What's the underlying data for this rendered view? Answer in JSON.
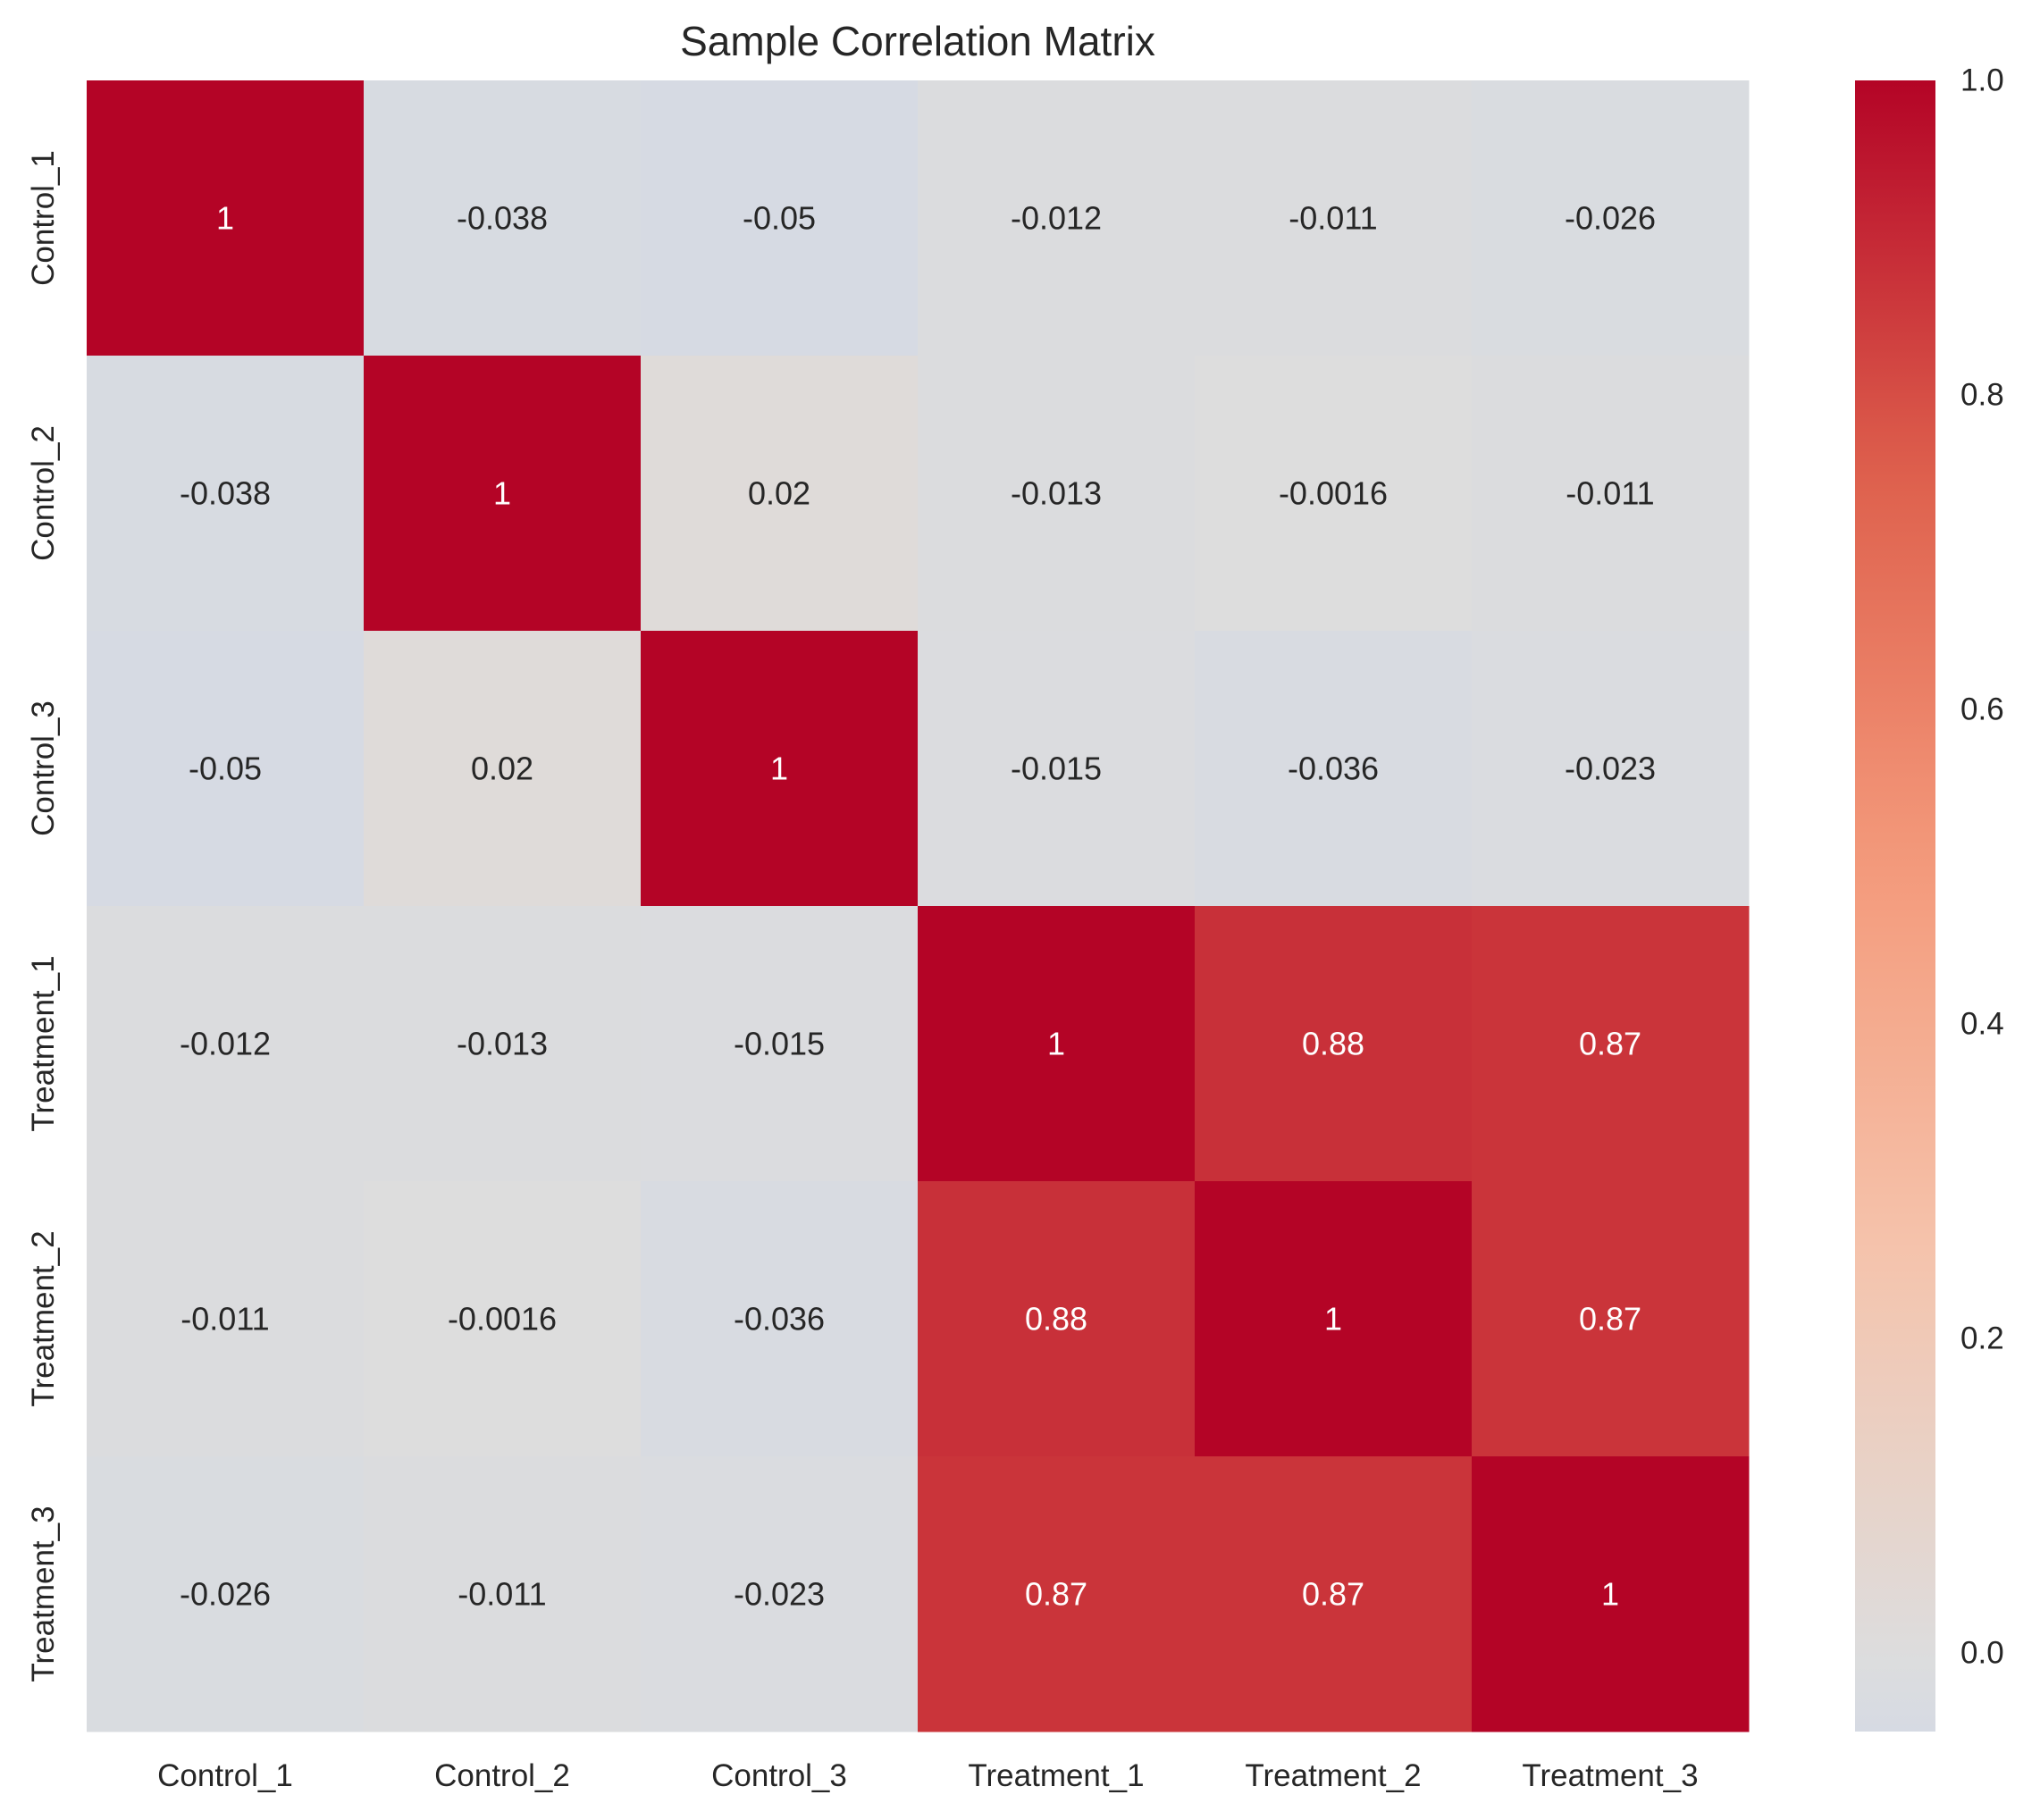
{
  "chart_data": {
    "type": "heatmap",
    "title": "Sample Correlation Matrix",
    "xlabel": "",
    "ylabel": "",
    "rows": [
      "Control_1",
      "Control_2",
      "Control_3",
      "Treatment_1",
      "Treatment_2",
      "Treatment_3"
    ],
    "cols": [
      "Control_1",
      "Control_2",
      "Control_3",
      "Treatment_1",
      "Treatment_2",
      "Treatment_3"
    ],
    "values": [
      [
        1,
        -0.038,
        -0.05,
        -0.012,
        -0.011,
        -0.026
      ],
      [
        -0.038,
        1,
        0.02,
        -0.013,
        -0.0016,
        -0.011
      ],
      [
        -0.05,
        0.02,
        1,
        -0.015,
        -0.036,
        -0.023
      ],
      [
        -0.012,
        -0.013,
        -0.015,
        1,
        0.88,
        0.87
      ],
      [
        -0.011,
        -0.0016,
        -0.036,
        0.88,
        1,
        0.87
      ],
      [
        -0.026,
        -0.011,
        -0.023,
        0.87,
        0.87,
        1
      ]
    ],
    "labels": [
      [
        "1",
        "-0.038",
        "-0.05",
        "-0.012",
        "-0.011",
        "-0.026"
      ],
      [
        "-0.038",
        "1",
        "0.02",
        "-0.013",
        "-0.0016",
        "-0.011"
      ],
      [
        "-0.05",
        "0.02",
        "1",
        "-0.015",
        "-0.036",
        "-0.023"
      ],
      [
        "-0.012",
        "-0.013",
        "-0.015",
        "1",
        "0.88",
        "0.87"
      ],
      [
        "-0.011",
        "-0.0016",
        "-0.036",
        "0.88",
        "1",
        "0.87"
      ],
      [
        "-0.026",
        "-0.011",
        "-0.023",
        "0.87",
        "0.87",
        "1"
      ]
    ],
    "colormap": "coolwarm",
    "vmin": -0.05,
    "vmax": 1.0,
    "colorbar": {
      "ticks": [
        0.0,
        0.2,
        0.4,
        0.6,
        0.8,
        1.0
      ],
      "tick_labels": [
        "0.0",
        "0.2",
        "0.4",
        "0.6",
        "0.8",
        "1.0"
      ]
    },
    "grid": false,
    "colorbar_placement": "right"
  }
}
